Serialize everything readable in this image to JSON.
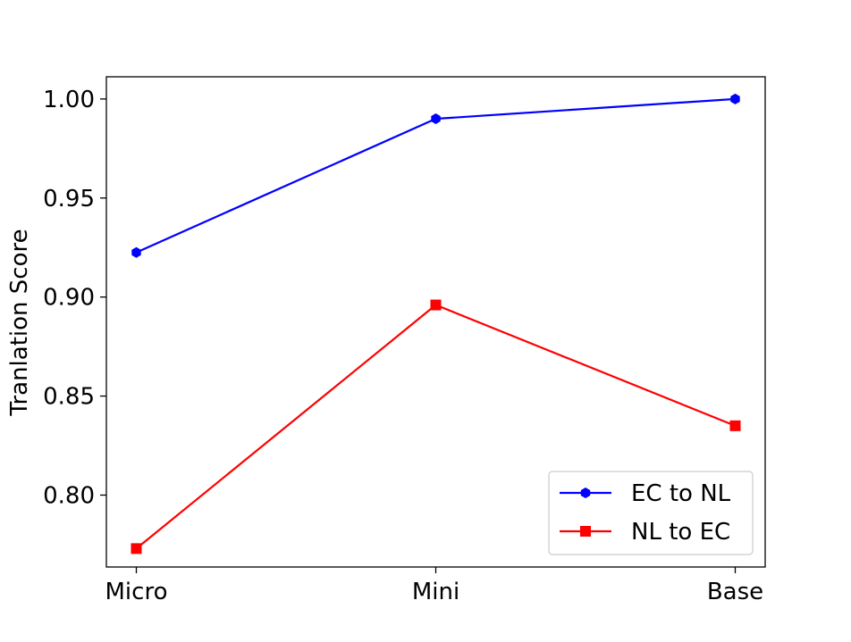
{
  "chart_data": {
    "type": "line",
    "categories": [
      "Micro",
      "Mini",
      "Base"
    ],
    "ylabel": "Tranlation Score",
    "xlabel": "",
    "ylim": [
      0.7637,
      1.0112
    ],
    "yticks": [
      0.8,
      0.85,
      0.9,
      0.95,
      1.0
    ],
    "ytick_labels": [
      "0.80",
      "0.85",
      "0.90",
      "0.95",
      "1.00"
    ],
    "grid": false,
    "legend_position": "lower-right",
    "series": [
      {
        "name": "EC to NL",
        "values": [
          0.9225,
          0.99,
          1.0
        ],
        "color": "#0000ff",
        "marker": "hexagon"
      },
      {
        "name": "NL to EC",
        "values": [
          0.773,
          0.896,
          0.835
        ],
        "color": "#ff0000",
        "marker": "square"
      }
    ]
  }
}
